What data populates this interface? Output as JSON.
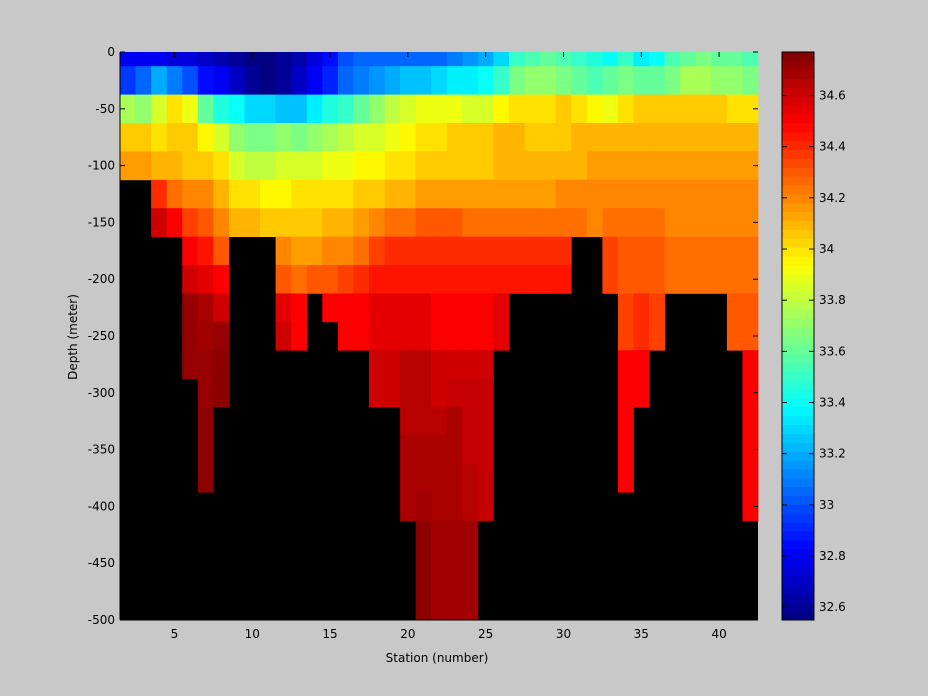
{
  "chart_data": {
    "type": "heatmap",
    "title": "",
    "xlabel": "Station (number)",
    "ylabel": "Depth (meter)",
    "x_range": [
      1.5,
      42.5
    ],
    "y_range": [
      -500,
      0
    ],
    "x_ticks": [
      "5",
      "10",
      "15",
      "20",
      "25",
      "30",
      "35",
      "40"
    ],
    "y_ticks": [
      "0",
      "-50",
      "-100",
      "-150",
      "-200",
      "-250",
      "-300",
      "-350",
      "-400",
      "-450",
      "-500"
    ],
    "colorbar": {
      "min": 32.55,
      "max": 34.77,
      "ticks": [
        "32.6",
        "32.8",
        "33",
        "33.2",
        "33.4",
        "33.6",
        "33.8",
        "34",
        "34.2",
        "34.4",
        "34.6"
      ],
      "colormap": "jet"
    },
    "no_data_color": "#000000",
    "stations": [
      2,
      3,
      4,
      5,
      6,
      7,
      8,
      9,
      10,
      11,
      12,
      13,
      14,
      15,
      16,
      17,
      18,
      19,
      20,
      21,
      22,
      23,
      24,
      25,
      26,
      27,
      28,
      29,
      30,
      31,
      32,
      33,
      34,
      35,
      36,
      37,
      38,
      39,
      40,
      41,
      42
    ],
    "depths": [
      0,
      -25,
      -50,
      -75,
      -100,
      -125,
      -150,
      -175,
      -200,
      -225,
      -250,
      -275,
      -300,
      -325,
      -350,
      -375,
      -400,
      -425,
      -450,
      -475,
      -500
    ],
    "profiles": [
      {
        "station": 2,
        "values": [
          32.8,
          32.95,
          33.75,
          34.05,
          34.15
        ]
      },
      {
        "station": 3,
        "values": [
          32.8,
          33.05,
          33.7,
          34.05,
          34.15
        ]
      },
      {
        "station": 4,
        "values": [
          32.8,
          33.2,
          33.85,
          34.0,
          34.1,
          34.4,
          34.6
        ]
      },
      {
        "station": 5,
        "values": [
          32.75,
          33.1,
          34.0,
          34.05,
          34.1,
          34.25,
          34.5
        ]
      },
      {
        "station": 6,
        "values": [
          32.75,
          33.0,
          33.9,
          34.05,
          34.05,
          34.2,
          34.35,
          34.5,
          34.6,
          34.72,
          34.72,
          34.72
        ]
      },
      {
        "station": 7,
        "values": [
          32.7,
          32.85,
          33.6,
          33.95,
          34.05,
          34.2,
          34.3,
          34.45,
          34.55,
          34.68,
          34.7,
          34.72,
          34.72,
          34.74,
          34.74,
          34.74
        ]
      },
      {
        "station": 8,
        "values": [
          32.65,
          32.8,
          33.45,
          33.85,
          34.0,
          34.1,
          34.2,
          34.3,
          34.5,
          34.6,
          34.72,
          34.74,
          34.74
        ]
      },
      {
        "station": 9,
        "values": [
          32.6,
          32.7,
          33.4,
          33.7,
          33.85,
          34.0,
          34.1
        ]
      },
      {
        "station": 10,
        "values": [
          32.55,
          32.6,
          33.3,
          33.65,
          33.8,
          34.0,
          34.1
        ]
      },
      {
        "station": 11,
        "values": [
          32.55,
          32.55,
          33.3,
          33.65,
          33.8,
          33.95,
          34.05
        ]
      },
      {
        "station": 12,
        "values": [
          32.6,
          32.6,
          33.25,
          33.7,
          33.85,
          33.95,
          34.05,
          34.2,
          34.3,
          34.55,
          34.6
        ]
      },
      {
        "station": 13,
        "values": [
          32.65,
          32.7,
          33.25,
          33.65,
          33.85,
          34.0,
          34.05,
          34.15,
          34.25,
          34.5,
          34.5
        ]
      },
      {
        "station": 14,
        "values": [
          32.75,
          32.8,
          33.35,
          33.7,
          33.85,
          34.0,
          34.05,
          34.15,
          34.3
        ]
      },
      {
        "station": 15,
        "values": [
          32.85,
          32.9,
          33.45,
          33.75,
          33.9,
          34.0,
          34.1,
          34.2,
          34.3,
          34.5
        ]
      },
      {
        "station": 16,
        "values": [
          33.0,
          33.05,
          33.5,
          33.8,
          33.9,
          34.0,
          34.1,
          34.2,
          34.35,
          34.5,
          34.5
        ]
      },
      {
        "station": 17,
        "values": [
          33.05,
          33.1,
          33.6,
          33.85,
          33.95,
          34.05,
          34.15,
          34.25,
          34.4,
          34.5,
          34.5
        ]
      },
      {
        "station": 18,
        "values": [
          33.05,
          33.15,
          33.7,
          33.85,
          33.95,
          34.05,
          34.2,
          34.35,
          34.45,
          34.55,
          34.55,
          34.6,
          34.6
        ]
      },
      {
        "station": 19,
        "values": [
          33.05,
          33.2,
          33.8,
          33.9,
          34.0,
          34.1,
          34.25,
          34.4,
          34.45,
          34.55,
          34.55,
          34.6,
          34.6
        ]
      },
      {
        "station": 20,
        "values": [
          33.05,
          33.25,
          33.85,
          33.95,
          34.0,
          34.1,
          34.25,
          34.4,
          34.45,
          34.55,
          34.55,
          34.65,
          34.65,
          34.65,
          34.68,
          34.68,
          34.68
        ]
      },
      {
        "station": 21,
        "values": [
          33.05,
          33.25,
          33.9,
          34.0,
          34.05,
          34.15,
          34.3,
          34.4,
          34.45,
          34.55,
          34.55,
          34.65,
          34.65,
          34.65,
          34.68,
          34.68,
          34.7,
          34.74,
          34.74,
          34.74,
          34.74
        ]
      },
      {
        "station": 22,
        "values": [
          33.05,
          33.3,
          33.9,
          34.0,
          34.05,
          34.15,
          34.3,
          34.4,
          34.45,
          34.5,
          34.5,
          34.6,
          34.6,
          34.65,
          34.68,
          34.68,
          34.68,
          34.7,
          34.7,
          34.7,
          34.7
        ]
      },
      {
        "station": 23,
        "values": [
          33.1,
          33.35,
          33.9,
          34.05,
          34.05,
          34.15,
          34.3,
          34.4,
          34.45,
          34.5,
          34.5,
          34.6,
          34.62,
          34.68,
          34.68,
          34.68,
          34.68,
          34.7,
          34.7,
          34.7,
          34.7
        ]
      },
      {
        "station": 24,
        "values": [
          33.15,
          33.35,
          33.85,
          34.05,
          34.05,
          34.15,
          34.25,
          34.4,
          34.45,
          34.5,
          34.5,
          34.6,
          34.62,
          34.62,
          34.62,
          34.65,
          34.65,
          34.7,
          34.7,
          34.7,
          34.7
        ]
      },
      {
        "station": 25,
        "values": [
          33.2,
          33.4,
          33.85,
          34.05,
          34.05,
          34.15,
          34.25,
          34.4,
          34.45,
          34.5,
          34.5,
          34.6,
          34.62,
          34.62,
          34.62,
          34.62,
          34.62
        ]
      },
      {
        "station": 26,
        "values": [
          33.3,
          33.5,
          33.95,
          34.1,
          34.1,
          34.15,
          34.25,
          34.4,
          34.45,
          34.55,
          34.55
        ]
      },
      {
        "station": 27,
        "values": [
          33.5,
          33.65,
          34.0,
          34.1,
          34.1,
          34.15,
          34.25,
          34.4,
          34.45
        ]
      },
      {
        "station": 28,
        "values": [
          33.55,
          33.7,
          34.0,
          34.05,
          34.1,
          34.15,
          34.25,
          34.4,
          34.45
        ]
      },
      {
        "station": 29,
        "values": [
          33.6,
          33.7,
          34.0,
          34.05,
          34.1,
          34.15,
          34.25,
          34.4,
          34.45
        ]
      },
      {
        "station": 30,
        "values": [
          33.55,
          33.65,
          34.05,
          34.05,
          34.1,
          34.2,
          34.25,
          34.4,
          34.45
        ]
      },
      {
        "station": 31,
        "values": [
          33.5,
          33.6,
          34.0,
          34.1,
          34.1,
          34.2,
          34.25
        ]
      },
      {
        "station": 32,
        "values": [
          33.45,
          33.55,
          33.95,
          34.1,
          34.15,
          34.2,
          34.2
        ]
      },
      {
        "station": 33,
        "values": [
          33.4,
          33.6,
          33.9,
          34.1,
          34.15,
          34.2,
          34.25,
          34.35,
          34.35
        ]
      },
      {
        "station": 34,
        "values": [
          33.5,
          33.65,
          34.0,
          34.1,
          34.15,
          34.2,
          34.25,
          34.3,
          34.3,
          34.35,
          34.35,
          34.5,
          34.5,
          34.5,
          34.5,
          34.5
        ]
      },
      {
        "station": 35,
        "values": [
          33.35,
          33.6,
          34.05,
          34.1,
          34.15,
          34.2,
          34.25,
          34.3,
          34.3,
          34.4,
          34.4,
          34.5,
          34.5
        ]
      },
      {
        "station": 36,
        "values": [
          33.4,
          33.6,
          34.05,
          34.1,
          34.15,
          34.2,
          34.25,
          34.3,
          34.3,
          34.35,
          34.35
        ]
      },
      {
        "station": 37,
        "values": [
          33.55,
          33.65,
          34.05,
          34.1,
          34.15,
          34.2,
          34.2,
          34.25,
          34.25
        ]
      },
      {
        "station": 38,
        "values": [
          33.6,
          33.75,
          34.05,
          34.1,
          34.15,
          34.2,
          34.2,
          34.25,
          34.25
        ]
      },
      {
        "station": 39,
        "values": [
          33.65,
          33.75,
          34.05,
          34.1,
          34.15,
          34.2,
          34.2,
          34.25,
          34.25
        ]
      },
      {
        "station": 40,
        "values": [
          33.6,
          33.7,
          34.05,
          34.1,
          34.15,
          34.2,
          34.2,
          34.25,
          34.25
        ]
      },
      {
        "station": 41,
        "values": [
          33.6,
          33.7,
          34.0,
          34.1,
          34.15,
          34.2,
          34.2,
          34.25,
          34.25,
          34.3,
          34.3
        ]
      },
      {
        "station": 42,
        "values": [
          33.55,
          33.65,
          34.0,
          34.1,
          34.15,
          34.2,
          34.2,
          34.25,
          34.25,
          34.3,
          34.3,
          34.5,
          34.5,
          34.5,
          34.5,
          34.5,
          34.5
        ]
      }
    ]
  }
}
